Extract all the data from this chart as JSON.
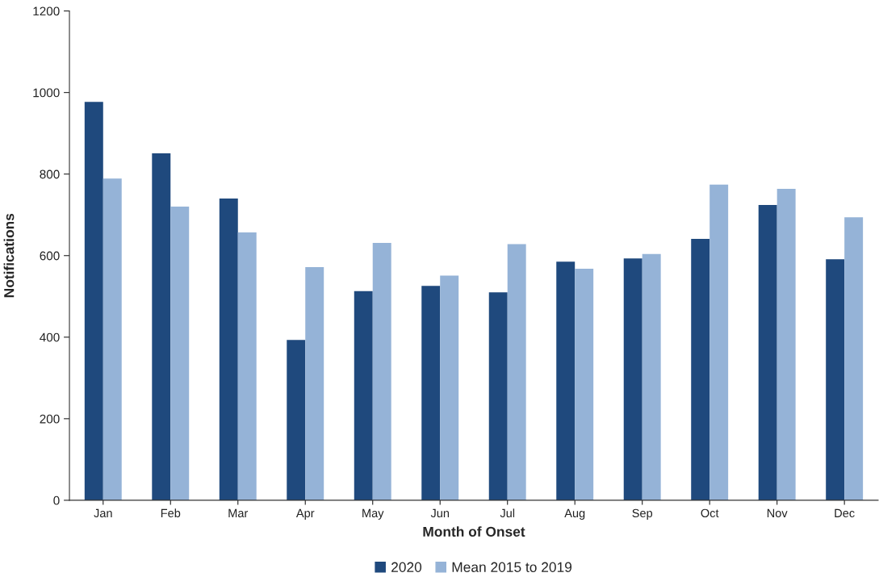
{
  "chart_data": {
    "type": "bar",
    "xlabel": "Month of Onset",
    "ylabel": "Notifications",
    "categories": [
      "Jan",
      "Feb",
      "Mar",
      "Apr",
      "May",
      "Jun",
      "Jul",
      "Aug",
      "Sep",
      "Oct",
      "Nov",
      "Dec"
    ],
    "series": [
      {
        "name": "2020",
        "color": "#1f497d",
        "values": [
          977,
          851,
          740,
          393,
          513,
          526,
          510,
          585,
          593,
          641,
          724,
          591
        ]
      },
      {
        "name": "Mean 2015 to 2019",
        "color": "#95b3d7",
        "values": [
          789,
          720,
          657,
          572,
          631,
          551,
          628,
          568,
          604,
          774,
          764,
          694
        ]
      }
    ],
    "ylim": [
      0,
      1200
    ],
    "yticks": [
      0,
      200,
      400,
      600,
      800,
      1000,
      1200
    ],
    "grid": false,
    "legend": "bottom"
  }
}
